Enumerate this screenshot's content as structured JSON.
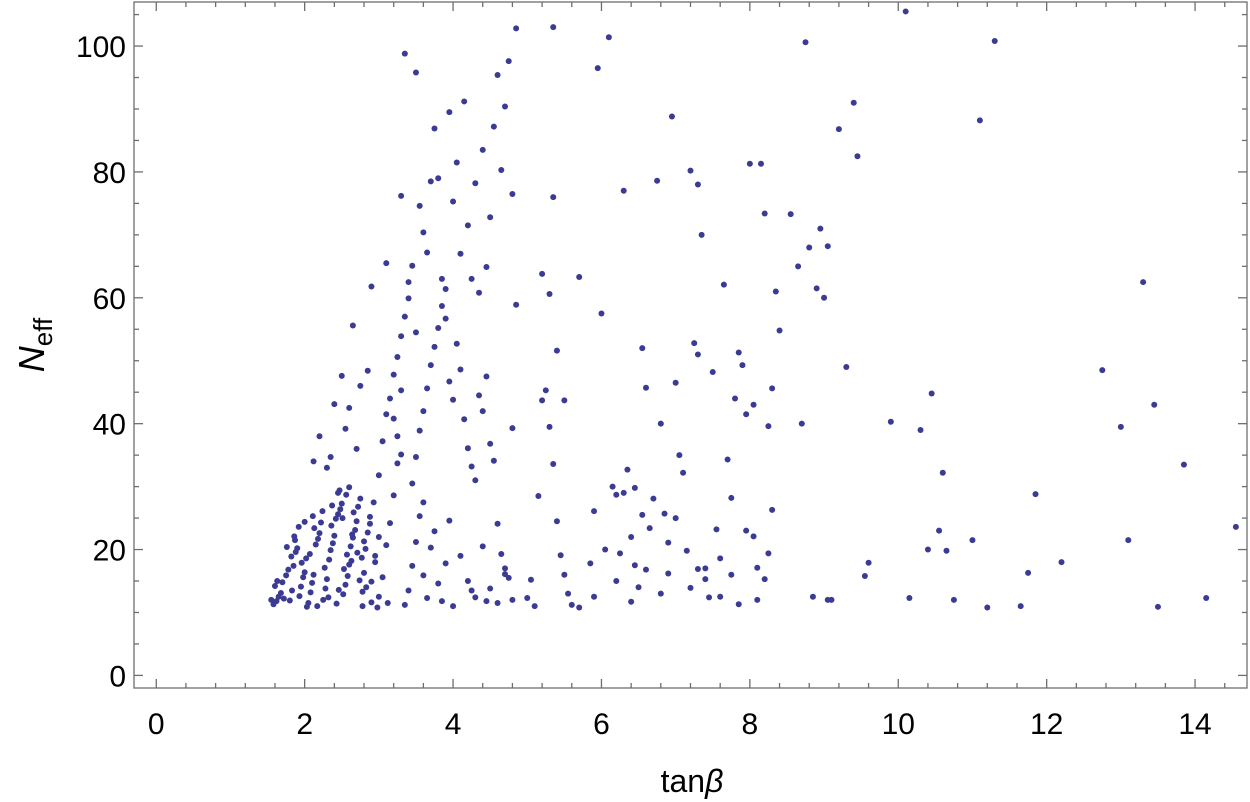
{
  "chart_data": {
    "type": "scatter",
    "title": "",
    "xlabel": "tanβ",
    "ylabel": "N_eff",
    "ylabel_main": "N",
    "ylabel_sub": "eff",
    "xlabel_main": "tan",
    "xlabel_greek": "β",
    "xlim": [
      -0.3,
      14.7
    ],
    "ylim": [
      -2,
      107
    ],
    "xticks": [
      0,
      2,
      4,
      6,
      8,
      10,
      12,
      14
    ],
    "yticks": [
      0,
      20,
      40,
      60,
      80,
      100
    ],
    "grid": false,
    "color": "#3b3b94",
    "points": [
      [
        1.55,
        12.0
      ],
      [
        1.58,
        11.3
      ],
      [
        1.62,
        11.8
      ],
      [
        1.65,
        12.5
      ],
      [
        1.68,
        13.1
      ],
      [
        1.6,
        14.2
      ],
      [
        1.63,
        15.0
      ],
      [
        1.7,
        14.8
      ],
      [
        1.75,
        15.9
      ],
      [
        1.72,
        12.2
      ],
      [
        1.8,
        11.9
      ],
      [
        1.83,
        13.5
      ],
      [
        1.78,
        16.8
      ],
      [
        1.85,
        17.4
      ],
      [
        1.82,
        18.9
      ],
      [
        1.88,
        19.6
      ],
      [
        1.9,
        20.2
      ],
      [
        1.93,
        12.6
      ],
      [
        1.95,
        14.1
      ],
      [
        1.98,
        15.6
      ],
      [
        2.0,
        16.4
      ],
      [
        1.96,
        17.9
      ],
      [
        2.02,
        18.6
      ],
      [
        2.05,
        11.5
      ],
      [
        2.08,
        13.2
      ],
      [
        2.1,
        14.7
      ],
      [
        2.12,
        16.0
      ],
      [
        2.07,
        19.3
      ],
      [
        2.15,
        20.8
      ],
      [
        2.18,
        21.7
      ],
      [
        2.2,
        22.6
      ],
      [
        2.13,
        23.4
      ],
      [
        2.22,
        24.3
      ],
      [
        2.25,
        12.0
      ],
      [
        2.28,
        13.8
      ],
      [
        2.3,
        15.3
      ],
      [
        2.27,
        17.1
      ],
      [
        2.33,
        18.4
      ],
      [
        2.35,
        19.9
      ],
      [
        2.38,
        21.0
      ],
      [
        2.4,
        22.2
      ],
      [
        2.36,
        23.8
      ],
      [
        2.42,
        24.9
      ],
      [
        2.45,
        25.6
      ],
      [
        2.48,
        26.4
      ],
      [
        2.5,
        27.3
      ],
      [
        2.43,
        11.4
      ],
      [
        2.52,
        12.9
      ],
      [
        2.55,
        14.4
      ],
      [
        2.58,
        15.8
      ],
      [
        2.6,
        17.6
      ],
      [
        2.57,
        19.2
      ],
      [
        2.62,
        20.5
      ],
      [
        2.65,
        21.9
      ],
      [
        2.68,
        23.1
      ],
      [
        2.7,
        24.5
      ],
      [
        2.66,
        25.9
      ],
      [
        2.72,
        26.8
      ],
      [
        2.75,
        28.1
      ],
      [
        2.78,
        13.3
      ],
      [
        2.8,
        16.3
      ],
      [
        2.77,
        18.7
      ],
      [
        2.82,
        20.1
      ],
      [
        2.85,
        22.7
      ],
      [
        2.88,
        24.1
      ],
      [
        2.9,
        11.6
      ],
      [
        1.86,
        22.1
      ],
      [
        1.92,
        23.6
      ],
      [
        2.0,
        24.4
      ],
      [
        2.03,
        10.9
      ],
      [
        2.17,
        11.0
      ],
      [
        2.32,
        12.4
      ],
      [
        2.46,
        13.6
      ],
      [
        2.53,
        16.9
      ],
      [
        2.63,
        18.2
      ],
      [
        2.71,
        19.5
      ],
      [
        2.8,
        21.3
      ],
      [
        2.88,
        25.2
      ],
      [
        2.93,
        27.5
      ],
      [
        2.56,
        28.7
      ],
      [
        2.47,
        29.4
      ],
      [
        2.6,
        29.9
      ],
      [
        1.76,
        20.4
      ],
      [
        1.87,
        21.5
      ],
      [
        2.11,
        25.3
      ],
      [
        2.24,
        26.1
      ],
      [
        2.37,
        27.0
      ],
      [
        2.51,
        25.0
      ],
      [
        2.64,
        22.4
      ],
      [
        2.74,
        15.1
      ],
      [
        2.83,
        14.0
      ],
      [
        2.95,
        18.0
      ],
      [
        3.0,
        22.0
      ],
      [
        3.05,
        37.2
      ],
      [
        3.1,
        41.5
      ],
      [
        3.15,
        44.0
      ],
      [
        3.2,
        47.8
      ],
      [
        3.25,
        50.6
      ],
      [
        3.3,
        53.9
      ],
      [
        3.35,
        57.0
      ],
      [
        3.4,
        62.5
      ],
      [
        3.45,
        65.1
      ],
      [
        3.3,
        76.2
      ],
      [
        3.35,
        98.8
      ],
      [
        3.5,
        95.8
      ],
      [
        3.55,
        74.6
      ],
      [
        3.6,
        70.4
      ],
      [
        3.65,
        67.2
      ],
      [
        3.7,
        78.5
      ],
      [
        3.75,
        86.9
      ],
      [
        3.8,
        79.0
      ],
      [
        3.85,
        63.0
      ],
      [
        3.9,
        56.7
      ],
      [
        3.95,
        89.5
      ],
      [
        4.0,
        75.3
      ],
      [
        4.05,
        81.5
      ],
      [
        4.1,
        67.0
      ],
      [
        4.15,
        91.2
      ],
      [
        4.2,
        71.5
      ],
      [
        4.25,
        63.0
      ],
      [
        4.3,
        78.2
      ],
      [
        4.35,
        60.8
      ],
      [
        4.4,
        83.5
      ],
      [
        4.45,
        64.9
      ],
      [
        4.5,
        72.8
      ],
      [
        4.55,
        87.2
      ],
      [
        4.6,
        95.4
      ],
      [
        4.65,
        80.3
      ],
      [
        4.7,
        90.4
      ],
      [
        4.75,
        97.6
      ],
      [
        4.8,
        76.5
      ],
      [
        4.85,
        102.8
      ],
      [
        3.45,
        30.5
      ],
      [
        3.5,
        34.7
      ],
      [
        3.55,
        38.9
      ],
      [
        3.6,
        42.0
      ],
      [
        3.65,
        45.6
      ],
      [
        3.7,
        49.3
      ],
      [
        3.75,
        52.2
      ],
      [
        3.8,
        55.2
      ],
      [
        3.85,
        58.7
      ],
      [
        3.9,
        61.4
      ],
      [
        3.95,
        46.7
      ],
      [
        4.0,
        43.8
      ],
      [
        4.05,
        52.7
      ],
      [
        4.1,
        48.6
      ],
      [
        4.15,
        40.7
      ],
      [
        4.2,
        36.1
      ],
      [
        4.25,
        33.2
      ],
      [
        4.3,
        31.0
      ],
      [
        4.35,
        44.5
      ],
      [
        4.4,
        42.0
      ],
      [
        4.45,
        47.5
      ],
      [
        4.5,
        36.8
      ],
      [
        4.55,
        34.1
      ],
      [
        4.6,
        24.1
      ],
      [
        4.65,
        19.3
      ],
      [
        4.7,
        17.0
      ],
      [
        4.75,
        15.5
      ],
      [
        4.8,
        39.3
      ],
      [
        4.85,
        58.9
      ],
      [
        3.0,
        12.5
      ],
      [
        3.05,
        15.6
      ],
      [
        3.1,
        20.7
      ],
      [
        3.15,
        24.2
      ],
      [
        3.2,
        28.6
      ],
      [
        3.25,
        33.7
      ],
      [
        3.3,
        35.1
      ],
      [
        3.35,
        11.2
      ],
      [
        3.4,
        13.5
      ],
      [
        3.45,
        17.4
      ],
      [
        3.5,
        21.2
      ],
      [
        3.55,
        25.3
      ],
      [
        3.6,
        15.9
      ],
      [
        3.65,
        12.3
      ],
      [
        3.7,
        20.3
      ],
      [
        3.75,
        22.9
      ],
      [
        3.8,
        14.6
      ],
      [
        3.85,
        11.8
      ],
      [
        3.9,
        17.8
      ],
      [
        3.95,
        24.6
      ],
      [
        4.0,
        11.0
      ],
      [
        4.1,
        19.0
      ],
      [
        4.2,
        15.0
      ],
      [
        4.3,
        12.4
      ],
      [
        4.4,
        20.5
      ],
      [
        4.5,
        13.8
      ],
      [
        4.6,
        11.5
      ],
      [
        4.7,
        16.1
      ],
      [
        4.8,
        12.0
      ],
      [
        2.9,
        14.9
      ],
      [
        2.95,
        19.0
      ],
      [
        3.0,
        31.8
      ],
      [
        3.1,
        65.5
      ],
      [
        3.2,
        40.8
      ],
      [
        3.25,
        38.0
      ],
      [
        3.3,
        45.3
      ],
      [
        3.4,
        59.9
      ],
      [
        3.5,
        54.5
      ],
      [
        3.6,
        27.5
      ],
      [
        2.4,
        43.1
      ],
      [
        2.5,
        47.6
      ],
      [
        2.6,
        42.5
      ],
      [
        2.55,
        39.2
      ],
      [
        2.65,
        55.6
      ],
      [
        2.7,
        36.0
      ],
      [
        2.75,
        46.0
      ],
      [
        2.85,
        48.4
      ],
      [
        2.9,
        61.8
      ],
      [
        2.35,
        34.7
      ],
      [
        2.45,
        29.0
      ],
      [
        2.12,
        34.0
      ],
      [
        2.2,
        38.0
      ],
      [
        2.3,
        33.0
      ],
      [
        5.0,
        12.3
      ],
      [
        5.05,
        15.2
      ],
      [
        5.1,
        11.0
      ],
      [
        5.15,
        28.5
      ],
      [
        5.2,
        43.7
      ],
      [
        5.25,
        45.3
      ],
      [
        5.3,
        39.5
      ],
      [
        5.35,
        33.6
      ],
      [
        5.4,
        24.5
      ],
      [
        5.45,
        19.1
      ],
      [
        5.5,
        16.0
      ],
      [
        5.55,
        13.0
      ],
      [
        5.6,
        11.2
      ],
      [
        5.2,
        63.8
      ],
      [
        5.3,
        60.6
      ],
      [
        5.35,
        76.0
      ],
      [
        5.4,
        51.6
      ],
      [
        5.5,
        43.7
      ],
      [
        5.35,
        103.0
      ],
      [
        5.7,
        63.3
      ],
      [
        5.85,
        17.8
      ],
      [
        5.9,
        26.1
      ],
      [
        5.95,
        96.5
      ],
      [
        6.0,
        57.5
      ],
      [
        6.05,
        20.0
      ],
      [
        6.1,
        101.4
      ],
      [
        6.15,
        30.0
      ],
      [
        6.2,
        28.7
      ],
      [
        6.25,
        19.4
      ],
      [
        6.3,
        77.0
      ],
      [
        6.35,
        32.7
      ],
      [
        6.4,
        22.0
      ],
      [
        6.45,
        17.5
      ],
      [
        6.5,
        14.0
      ],
      [
        6.55,
        52.0
      ],
      [
        6.6,
        45.7
      ],
      [
        6.65,
        23.4
      ],
      [
        6.7,
        28.1
      ],
      [
        6.75,
        78.6
      ],
      [
        6.8,
        40.0
      ],
      [
        6.85,
        25.7
      ],
      [
        6.9,
        21.1
      ],
      [
        6.95,
        88.8
      ],
      [
        7.0,
        46.5
      ],
      [
        7.05,
        35.0
      ],
      [
        7.1,
        32.2
      ],
      [
        7.15,
        19.8
      ],
      [
        7.2,
        80.2
      ],
      [
        7.25,
        52.8
      ],
      [
        7.3,
        78.0
      ],
      [
        7.35,
        70.0
      ],
      [
        7.4,
        17.0
      ],
      [
        7.45,
        12.4
      ],
      [
        7.5,
        48.2
      ],
      [
        7.55,
        23.2
      ],
      [
        7.6,
        18.6
      ],
      [
        7.65,
        62.1
      ],
      [
        7.7,
        34.3
      ],
      [
        7.75,
        16.0
      ],
      [
        7.8,
        44.0
      ],
      [
        7.85,
        51.3
      ],
      [
        7.9,
        49.3
      ],
      [
        7.95,
        23.0
      ],
      [
        8.0,
        81.3
      ],
      [
        8.05,
        22.1
      ],
      [
        8.1,
        17.1
      ],
      [
        8.15,
        81.3
      ],
      [
        8.2,
        73.4
      ],
      [
        8.25,
        39.6
      ],
      [
        8.3,
        45.6
      ],
      [
        8.35,
        61.0
      ],
      [
        8.4,
        54.8
      ],
      [
        8.3,
        26.3
      ],
      [
        8.25,
        19.4
      ],
      [
        8.2,
        15.3
      ],
      [
        8.1,
        12.0
      ],
      [
        7.85,
        11.3
      ],
      [
        7.6,
        12.5
      ],
      [
        7.4,
        15.3
      ],
      [
        7.2,
        13.9
      ],
      [
        6.9,
        16.2
      ],
      [
        6.6,
        16.8
      ],
      [
        6.4,
        11.7
      ],
      [
        6.2,
        15.0
      ],
      [
        5.9,
        12.5
      ],
      [
        5.7,
        10.8
      ],
      [
        6.8,
        13.0
      ],
      [
        7.0,
        25.0
      ],
      [
        6.55,
        25.5
      ],
      [
        6.3,
        29.0
      ],
      [
        6.45,
        29.8
      ],
      [
        7.3,
        16.9
      ],
      [
        7.75,
        28.2
      ],
      [
        7.95,
        41.5
      ],
      [
        8.05,
        43.0
      ],
      [
        7.3,
        51.0
      ],
      [
        8.55,
        73.3
      ],
      [
        8.65,
        65.0
      ],
      [
        8.75,
        100.6
      ],
      [
        8.7,
        40.0
      ],
      [
        8.8,
        68.0
      ],
      [
        8.9,
        61.5
      ],
      [
        8.95,
        71.0
      ],
      [
        9.0,
        60.0
      ],
      [
        9.05,
        68.2
      ],
      [
        9.1,
        12.0
      ],
      [
        9.2,
        86.8
      ],
      [
        9.3,
        49.0
      ],
      [
        9.4,
        91.0
      ],
      [
        9.45,
        82.5
      ],
      [
        8.85,
        12.5
      ],
      [
        9.05,
        12.0
      ],
      [
        9.6,
        17.9
      ],
      [
        9.55,
        15.8
      ],
      [
        9.9,
        40.3
      ],
      [
        10.1,
        105.5
      ],
      [
        10.15,
        12.3
      ],
      [
        10.3,
        39.0
      ],
      [
        10.4,
        20.0
      ],
      [
        10.45,
        44.8
      ],
      [
        10.55,
        23.0
      ],
      [
        10.6,
        32.2
      ],
      [
        10.65,
        19.8
      ],
      [
        10.75,
        12.0
      ],
      [
        11.0,
        21.5
      ],
      [
        11.1,
        88.2
      ],
      [
        11.2,
        10.8
      ],
      [
        11.3,
        100.8
      ],
      [
        11.65,
        11.0
      ],
      [
        11.75,
        16.3
      ],
      [
        11.85,
        28.8
      ],
      [
        12.2,
        18.0
      ],
      [
        12.75,
        48.5
      ],
      [
        13.0,
        39.5
      ],
      [
        13.1,
        21.5
      ],
      [
        13.3,
        62.5
      ],
      [
        13.45,
        43.0
      ],
      [
        13.5,
        10.9
      ],
      [
        13.85,
        33.5
      ],
      [
        14.15,
        12.3
      ],
      [
        14.55,
        23.6
      ],
      [
        2.78,
        11.0
      ],
      [
        2.98,
        10.8
      ],
      [
        3.12,
        11.5
      ],
      [
        4.25,
        13.5
      ],
      [
        4.45,
        11.8
      ]
    ]
  }
}
